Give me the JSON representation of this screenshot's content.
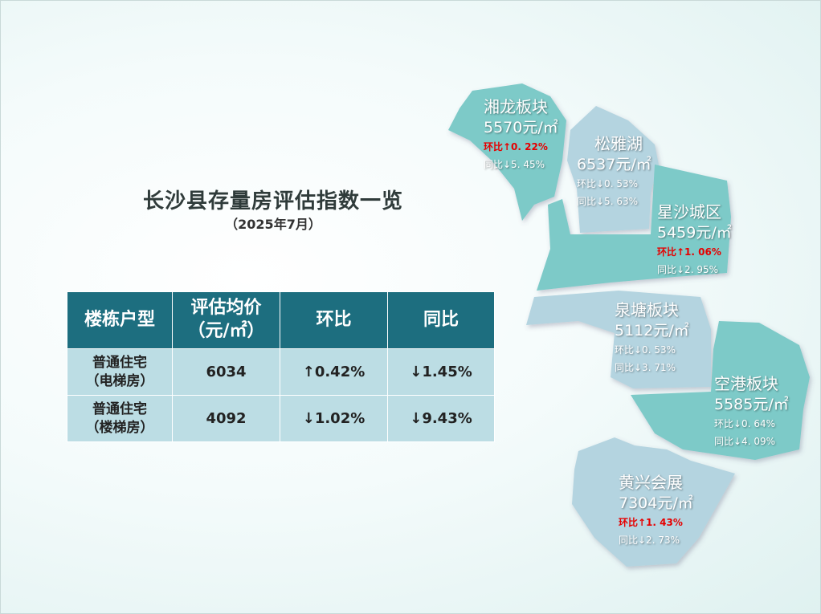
{
  "title": "长沙县存量房评估指数一览",
  "subtitle": "（2025年7月）",
  "table": {
    "headers": {
      "type": "楼栋户型",
      "price_line1": "评估均价",
      "price_line2": "（元/㎡）",
      "mom": "环比",
      "yoy": "同比"
    },
    "rows": [
      {
        "name_line1": "普通住宅",
        "name_line2": "（电梯房）",
        "price": "6034",
        "mom": "↑0.42%",
        "mom_dir": "up",
        "yoy": "↓1.45%",
        "yoy_dir": "down"
      },
      {
        "name_line1": "普通住宅",
        "name_line2": "（楼梯房）",
        "price": "4092",
        "mom": "↓1.02%",
        "mom_dir": "down",
        "yoy": "↓9.43%",
        "yoy_dir": "down"
      }
    ]
  },
  "map": {
    "colors": {
      "teal": "#7dcac8",
      "light_blue": "#b4d4e0",
      "up": "#e60000",
      "down": "#1b7a45"
    },
    "regions": [
      {
        "name": "湘龙板块",
        "price": "5570元/㎡",
        "mom": "环比↑0. 22%",
        "mom_dir": "up",
        "yoy": "同比↓5. 45%",
        "yoy_dir": "down"
      },
      {
        "name": "松雅湖",
        "price": "6537元/㎡",
        "mom": "环比↓0. 53%",
        "mom_dir": "down",
        "yoy": "同比↓5. 63%",
        "yoy_dir": "down"
      },
      {
        "name": "星沙城区",
        "price": "5459元/㎡",
        "mom": "环比↑1. 06%",
        "mom_dir": "up",
        "yoy": "同比↓2. 95%",
        "yoy_dir": "down"
      },
      {
        "name": "泉塘板块",
        "price": "5112元/㎡",
        "mom": "环比↓0. 53%",
        "mom_dir": "down",
        "yoy": "同比↓3. 71%",
        "yoy_dir": "down"
      },
      {
        "name": "空港板块",
        "price": "5585元/㎡",
        "mom": "环比↓0. 64%",
        "mom_dir": "down",
        "yoy": "同比↓4. 09%",
        "yoy_dir": "down"
      },
      {
        "name": "黄兴会展",
        "price": "7304元/㎡",
        "mom": "环比↑1. 43%",
        "mom_dir": "up",
        "yoy": "同比↓2. 73%",
        "yoy_dir": "down"
      }
    ]
  }
}
